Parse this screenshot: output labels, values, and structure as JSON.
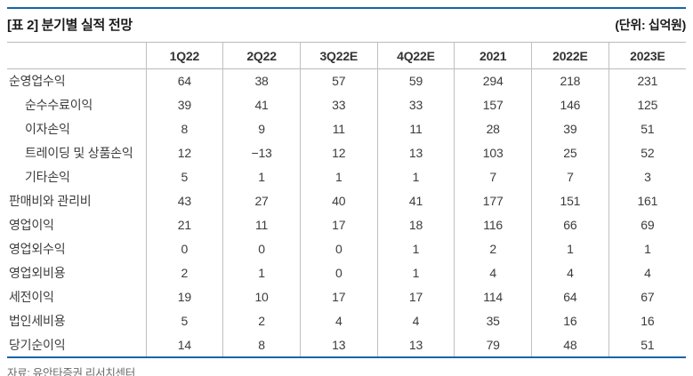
{
  "header": {
    "title": "[표 2] 분기별 실적 전망",
    "unit": "(단위: 십억원)"
  },
  "table": {
    "columns": [
      "1Q22",
      "2Q22",
      "3Q22E",
      "4Q22E",
      "2021",
      "2022E",
      "2023E"
    ],
    "rows": [
      {
        "label": "순영업수익",
        "indent": false,
        "values": [
          "64",
          "38",
          "57",
          "59",
          "294",
          "218",
          "231"
        ]
      },
      {
        "label": "순수수료이익",
        "indent": true,
        "values": [
          "39",
          "41",
          "33",
          "33",
          "157",
          "146",
          "125"
        ]
      },
      {
        "label": "이자손익",
        "indent": true,
        "values": [
          "8",
          "9",
          "11",
          "11",
          "28",
          "39",
          "51"
        ]
      },
      {
        "label": "트레이딩 및 상품손익",
        "indent": true,
        "values": [
          "12",
          "−13",
          "12",
          "13",
          "103",
          "25",
          "52"
        ]
      },
      {
        "label": "기타손익",
        "indent": true,
        "values": [
          "5",
          "1",
          "1",
          "1",
          "7",
          "7",
          "3"
        ]
      },
      {
        "label": "판매비와 관리비",
        "indent": false,
        "values": [
          "43",
          "27",
          "40",
          "41",
          "177",
          "151",
          "161"
        ]
      },
      {
        "label": "영업이익",
        "indent": false,
        "values": [
          "21",
          "11",
          "17",
          "18",
          "116",
          "66",
          "69"
        ]
      },
      {
        "label": "영업외수익",
        "indent": false,
        "values": [
          "0",
          "0",
          "0",
          "1",
          "2",
          "1",
          "1"
        ]
      },
      {
        "label": "영업외비용",
        "indent": false,
        "values": [
          "2",
          "1",
          "0",
          "1",
          "4",
          "4",
          "4"
        ]
      },
      {
        "label": "세전이익",
        "indent": false,
        "values": [
          "19",
          "10",
          "17",
          "17",
          "114",
          "64",
          "67"
        ]
      },
      {
        "label": "법인세비용",
        "indent": false,
        "values": [
          "5",
          "2",
          "4",
          "4",
          "35",
          "16",
          "16"
        ]
      },
      {
        "label": "당기순이익",
        "indent": false,
        "values": [
          "14",
          "8",
          "13",
          "13",
          "79",
          "48",
          "51"
        ]
      }
    ]
  },
  "footer": {
    "source": "자료: 유안타증권 리서치센터"
  },
  "colors": {
    "accent_rule": "#1565A8",
    "grid_line": "#c0c0c0",
    "body_text": "#3c3c3c",
    "footer_text": "#6b6b6b"
  }
}
